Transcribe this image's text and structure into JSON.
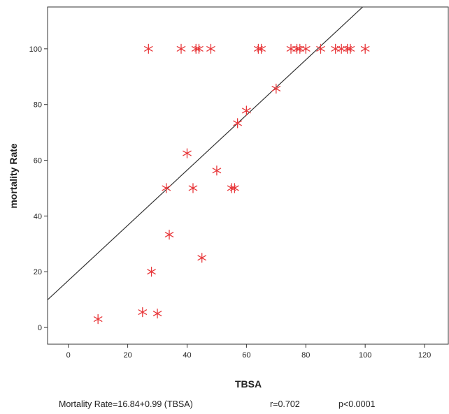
{
  "chart_data": {
    "type": "scatter",
    "xlabel": "TBSA",
    "ylabel": "mortality Rate",
    "xlim": [
      -7,
      128
    ],
    "ylim": [
      -6,
      115
    ],
    "xticks": [
      0,
      20,
      40,
      60,
      80,
      100,
      120
    ],
    "yticks": [
      0,
      20,
      40,
      60,
      80,
      100
    ],
    "marker": "*",
    "marker_color": "#e8383b",
    "line_color": "#333333",
    "grid": false,
    "points": [
      {
        "x": 10,
        "y": 3
      },
      {
        "x": 25,
        "y": 5.5
      },
      {
        "x": 30,
        "y": 5
      },
      {
        "x": 28,
        "y": 20
      },
      {
        "x": 45,
        "y": 25
      },
      {
        "x": 34,
        "y": 33.3
      },
      {
        "x": 33,
        "y": 50
      },
      {
        "x": 42,
        "y": 50
      },
      {
        "x": 55,
        "y": 50
      },
      {
        "x": 56,
        "y": 50
      },
      {
        "x": 50,
        "y": 56.3
      },
      {
        "x": 40,
        "y": 62.5
      },
      {
        "x": 57,
        "y": 73.3
      },
      {
        "x": 60,
        "y": 77.8
      },
      {
        "x": 70,
        "y": 85.7
      },
      {
        "x": 27,
        "y": 100
      },
      {
        "x": 38,
        "y": 100
      },
      {
        "x": 43,
        "y": 100
      },
      {
        "x": 44,
        "y": 100
      },
      {
        "x": 48,
        "y": 100
      },
      {
        "x": 64,
        "y": 100
      },
      {
        "x": 65,
        "y": 100
      },
      {
        "x": 75,
        "y": 100
      },
      {
        "x": 77,
        "y": 100
      },
      {
        "x": 78,
        "y": 100
      },
      {
        "x": 80,
        "y": 100
      },
      {
        "x": 85,
        "y": 100
      },
      {
        "x": 90,
        "y": 100
      },
      {
        "x": 92,
        "y": 100
      },
      {
        "x": 94,
        "y": 100
      },
      {
        "x": 95,
        "y": 100
      },
      {
        "x": 100,
        "y": 100
      }
    ],
    "fit_line": {
      "intercept": 16.84,
      "slope": 0.99
    }
  },
  "caption": {
    "equation": "Mortality Rate=16.84+0.99 (TBSA)",
    "r": "r=0.702",
    "p": "p<0.0001"
  }
}
